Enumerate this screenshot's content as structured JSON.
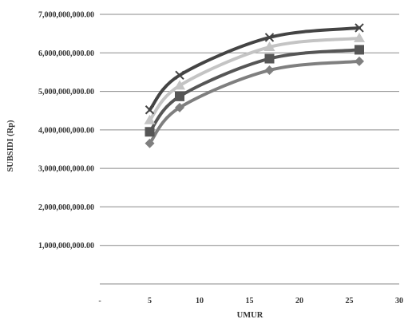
{
  "chart_data": {
    "type": "line",
    "title": "",
    "xlabel": "UMUR",
    "ylabel": "SUBSIDI (Rp)",
    "x_tick_labels": [
      "-",
      "5",
      "10",
      "15",
      "20",
      "25",
      "30"
    ],
    "y_tick_labels": [
      "",
      "1,000,000,000.00",
      "2,000,000,000.00",
      "3,000,000,000.00",
      "4,000,000,000.00",
      "5,000,000,000.00",
      "6,000,000,000.00",
      "7,000,000,000.00"
    ],
    "xlim": [
      0,
      30
    ],
    "ylim": [
      0,
      7000000000
    ],
    "grid": "horizontal",
    "legend": "none",
    "x": [
      5,
      8,
      17,
      26
    ],
    "series": [
      {
        "marker": "diamond",
        "color": "#7f7f7f",
        "values": [
          3650000000,
          4580000000,
          5550000000,
          5780000000
        ]
      },
      {
        "marker": "square",
        "color": "#565656",
        "values": [
          3950000000,
          4870000000,
          5850000000,
          6080000000
        ]
      },
      {
        "marker": "triangle",
        "color": "#c4c4c4",
        "values": [
          4250000000,
          5150000000,
          6150000000,
          6380000000
        ]
      },
      {
        "marker": "x",
        "color": "#444444",
        "values": [
          4520000000,
          5420000000,
          6400000000,
          6650000000
        ]
      }
    ]
  }
}
